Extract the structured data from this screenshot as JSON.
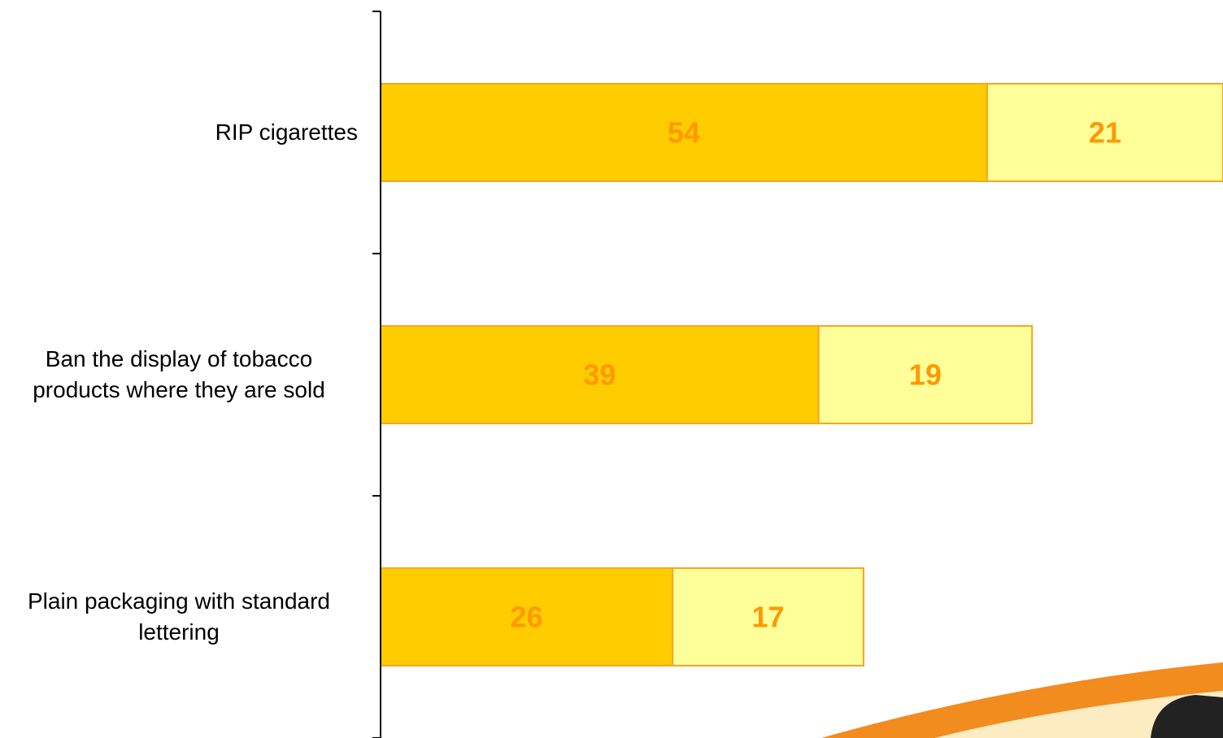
{
  "chart_data": {
    "type": "stacked-bar-horizontal",
    "categories": [
      "RIP cigarettes",
      "Ban the display of tobacco products where they are sold",
      "Plain packaging with standard lettering"
    ],
    "series": [
      {
        "color": "#FFCC00",
        "values": [
          54,
          39,
          26
        ]
      },
      {
        "color": "#FFFF99",
        "values": [
          21,
          19,
          17
        ]
      }
    ],
    "xlim": [
      0,
      75
    ],
    "label_color": "#FF9900",
    "border_color": "#F5A623"
  }
}
